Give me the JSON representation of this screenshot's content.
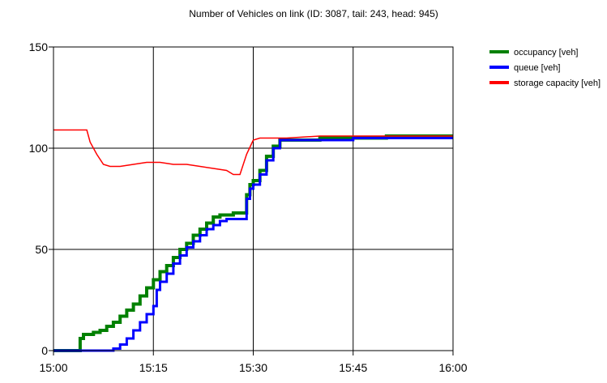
{
  "chart_data": {
    "type": "line",
    "title": "Number of Vehicles on link (ID: 3087, tail: 243, head: 945)",
    "xlabel": "",
    "ylabel": "",
    "x_ticks": [
      "15:00",
      "15:15",
      "15:30",
      "15:45",
      "16:00"
    ],
    "xlim": [
      0,
      60
    ],
    "ylim": [
      0,
      150
    ],
    "y_ticks": [
      0,
      50,
      100,
      150
    ],
    "grid": true,
    "legend_position": "top-right",
    "series": [
      {
        "name": "occupancy [veh]",
        "color": "#008000",
        "step": true,
        "x": [
          0,
          4,
          4.5,
          5,
          6,
          7,
          8,
          9,
          10,
          11,
          12,
          13,
          14,
          15,
          16,
          17,
          18,
          19,
          20,
          21,
          22,
          23,
          24,
          25,
          26,
          27,
          28,
          29,
          29.5,
          30,
          31,
          32,
          33,
          34,
          35,
          40,
          45,
          50,
          55,
          60
        ],
        "y": [
          0,
          6,
          8,
          8,
          9,
          10,
          12,
          14,
          17,
          20,
          23,
          27,
          31,
          35,
          39,
          42,
          46,
          50,
          53,
          57,
          60,
          63,
          66,
          67,
          67,
          68,
          68,
          77,
          82,
          84,
          89,
          96,
          101,
          104,
          104,
          105,
          105,
          106,
          106,
          106
        ]
      },
      {
        "name": "queue [veh]",
        "color": "#0000ff",
        "step": true,
        "x": [
          0,
          9,
          10,
          11,
          12,
          13,
          14,
          15,
          15.5,
          16,
          17,
          18,
          19,
          20,
          21,
          22,
          23,
          24,
          25,
          26,
          27,
          28,
          29,
          29.5,
          30,
          31,
          32,
          33,
          34,
          35,
          40,
          45,
          50,
          55,
          60
        ],
        "y": [
          0,
          1,
          3,
          6,
          10,
          14,
          18,
          22,
          30,
          34,
          38,
          43,
          47,
          51,
          54,
          57,
          60,
          62,
          64,
          65,
          65,
          65,
          75,
          80,
          82,
          87,
          94,
          100,
          104,
          104,
          104,
          105,
          105,
          105,
          105
        ]
      },
      {
        "name": "storage capacity [veh]",
        "color": "#ff0000",
        "step": false,
        "x": [
          0,
          5,
          5.5,
          6.5,
          7.5,
          8.5,
          10,
          12,
          14,
          16,
          18,
          20,
          22,
          24,
          26,
          27,
          28,
          29,
          30,
          31,
          32,
          33,
          35,
          40,
          45,
          50,
          55,
          60
        ],
        "y": [
          109,
          109,
          103,
          97,
          92,
          91,
          91,
          92,
          93,
          93,
          92,
          92,
          91,
          90,
          89,
          87,
          87,
          97,
          104,
          105,
          105,
          105,
          105,
          106,
          106,
          106,
          106,
          106
        ]
      }
    ]
  }
}
